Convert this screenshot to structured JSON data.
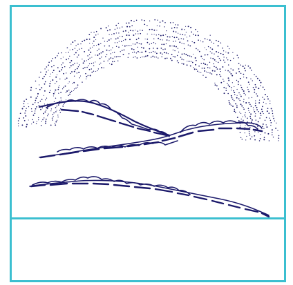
{
  "illustration": {
    "subject": "",
    "colors": {
      "frame": "#3bbfd0",
      "ink": "#1c1a6b",
      "background": "#ffffff"
    }
  },
  "caption": {
    "text": ""
  }
}
